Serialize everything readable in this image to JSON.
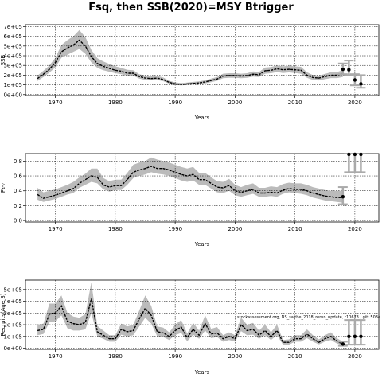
{
  "title": "Fsq, then SSB(2020)=MSY Btrigger",
  "annotation": "stockassessment.org, NS_saithe_2018_rerun_update, r10673 , git: 503e",
  "colors": {
    "band": "#bbbbbb",
    "line": "#000000",
    "proj": "#aaaaaa",
    "grid": "#000000"
  },
  "chart_data": [
    {
      "type": "line",
      "ylabel": "SSB",
      "xlabel": "Years",
      "xlim": [
        1965,
        2024
      ],
      "ylim": [
        -10000,
        720000
      ],
      "xticks": [
        1970,
        1980,
        1990,
        2000,
        2010,
        2020
      ],
      "yticks": [
        0,
        100000,
        200000,
        300000,
        400000,
        500000,
        600000,
        700000
      ],
      "ytick_labels": [
        "0e+00",
        "1e+05",
        "2e+05",
        "3e+05",
        "4e+05",
        "5e+05",
        "6e+05",
        "7e+05"
      ],
      "grid": true,
      "x": [
        1967,
        1968,
        1969,
        1970,
        1971,
        1972,
        1973,
        1974,
        1975,
        1976,
        1977,
        1978,
        1979,
        1980,
        1981,
        1982,
        1983,
        1984,
        1985,
        1986,
        1987,
        1988,
        1989,
        1990,
        1991,
        1992,
        1993,
        1994,
        1995,
        1996,
        1997,
        1998,
        1999,
        2000,
        2001,
        2002,
        2003,
        2004,
        2005,
        2006,
        2007,
        2008,
        2009,
        2010,
        2011,
        2012,
        2013,
        2014,
        2015,
        2016,
        2017,
        2018
      ],
      "values": [
        165000,
        210000,
        260000,
        330000,
        440000,
        480000,
        510000,
        560000,
        500000,
        390000,
        320000,
        290000,
        270000,
        250000,
        240000,
        220000,
        220000,
        185000,
        170000,
        165000,
        170000,
        155000,
        125000,
        110000,
        105000,
        110000,
        115000,
        120000,
        130000,
        145000,
        160000,
        190000,
        195000,
        195000,
        190000,
        195000,
        210000,
        205000,
        245000,
        250000,
        265000,
        255000,
        260000,
        255000,
        250000,
        200000,
        175000,
        170000,
        185000,
        200000,
        200000,
        215000
      ],
      "lower": [
        140000,
        180000,
        225000,
        280000,
        380000,
        410000,
        440000,
        470000,
        420000,
        330000,
        275000,
        250000,
        235000,
        220000,
        210000,
        195000,
        195000,
        165000,
        150000,
        148000,
        150000,
        138000,
        112000,
        98000,
        95000,
        98000,
        103000,
        108000,
        115000,
        128000,
        142000,
        168000,
        172000,
        172000,
        168000,
        172000,
        185000,
        180000,
        215000,
        220000,
        232000,
        222000,
        228000,
        222000,
        215000,
        172000,
        150000,
        145000,
        158000,
        170000,
        170000,
        180000
      ],
      "upper": [
        195000,
        245000,
        300000,
        380000,
        510000,
        560000,
        600000,
        665000,
        590000,
        460000,
        375000,
        340000,
        315000,
        290000,
        275000,
        255000,
        250000,
        210000,
        195000,
        188000,
        192000,
        175000,
        142000,
        125000,
        118000,
        123000,
        130000,
        135000,
        147000,
        165000,
        180000,
        215000,
        220000,
        220000,
        215000,
        220000,
        238000,
        232000,
        278000,
        283000,
        300000,
        290000,
        295000,
        290000,
        285000,
        230000,
        200000,
        195000,
        212000,
        230000,
        232000,
        250000
      ],
      "projection": {
        "x": [
          2018,
          2019,
          2020,
          2021
        ],
        "median": [
          260000,
          255000,
          150000,
          110000
        ],
        "lower": [
          210000,
          200000,
          95000,
          70000
        ],
        "upper": [
          320000,
          350000,
          210000,
          200000
        ]
      }
    },
    {
      "type": "line",
      "ylabel": "F₄‑₇",
      "xlabel": "Years",
      "xlim": [
        1965,
        2024
      ],
      "ylim": [
        -0.02,
        0.9
      ],
      "xticks": [
        1970,
        1980,
        1990,
        2000,
        2010,
        2020
      ],
      "yticks": [
        0.0,
        0.2,
        0.4,
        0.6,
        0.8
      ],
      "ytick_labels": [
        "0.0",
        "0.2",
        "0.4",
        "0.6",
        "0.8"
      ],
      "grid": true,
      "x": [
        1967,
        1968,
        1969,
        1970,
        1971,
        1972,
        1973,
        1974,
        1975,
        1976,
        1977,
        1978,
        1979,
        1980,
        1981,
        1982,
        1983,
        1984,
        1985,
        1986,
        1987,
        1988,
        1989,
        1990,
        1991,
        1992,
        1993,
        1994,
        1995,
        1996,
        1997,
        1998,
        1999,
        2000,
        2001,
        2002,
        2003,
        2004,
        2005,
        2006,
        2007,
        2008,
        2009,
        2010,
        2011,
        2012,
        2013,
        2014,
        2015,
        2016,
        2017,
        2018
      ],
      "values": [
        0.35,
        0.3,
        0.32,
        0.34,
        0.37,
        0.4,
        0.43,
        0.5,
        0.55,
        0.6,
        0.58,
        0.48,
        0.45,
        0.47,
        0.47,
        0.55,
        0.65,
        0.68,
        0.7,
        0.73,
        0.7,
        0.7,
        0.68,
        0.65,
        0.62,
        0.6,
        0.62,
        0.55,
        0.55,
        0.5,
        0.45,
        0.44,
        0.47,
        0.4,
        0.38,
        0.4,
        0.42,
        0.37,
        0.37,
        0.38,
        0.37,
        0.41,
        0.43,
        0.42,
        0.42,
        0.4,
        0.37,
        0.35,
        0.33,
        0.32,
        0.31,
        0.31
      ],
      "lower": [
        0.28,
        0.25,
        0.27,
        0.29,
        0.32,
        0.35,
        0.37,
        0.44,
        0.48,
        0.52,
        0.5,
        0.42,
        0.39,
        0.41,
        0.41,
        0.48,
        0.57,
        0.6,
        0.62,
        0.65,
        0.63,
        0.62,
        0.6,
        0.57,
        0.54,
        0.52,
        0.54,
        0.48,
        0.48,
        0.43,
        0.38,
        0.37,
        0.4,
        0.34,
        0.32,
        0.34,
        0.36,
        0.32,
        0.32,
        0.33,
        0.32,
        0.36,
        0.38,
        0.37,
        0.36,
        0.34,
        0.31,
        0.29,
        0.27,
        0.26,
        0.25,
        0.24
      ],
      "upper": [
        0.44,
        0.38,
        0.4,
        0.42,
        0.45,
        0.48,
        0.52,
        0.58,
        0.63,
        0.7,
        0.7,
        0.57,
        0.53,
        0.55,
        0.55,
        0.64,
        0.75,
        0.78,
        0.8,
        0.85,
        0.82,
        0.8,
        0.78,
        0.75,
        0.72,
        0.7,
        0.72,
        0.64,
        0.64,
        0.58,
        0.53,
        0.52,
        0.56,
        0.48,
        0.45,
        0.48,
        0.5,
        0.44,
        0.44,
        0.46,
        0.45,
        0.49,
        0.51,
        0.5,
        0.5,
        0.48,
        0.45,
        0.43,
        0.41,
        0.4,
        0.4,
        0.4
      ],
      "projection": {
        "x": [
          2018,
          2019,
          2020,
          2021
        ],
        "median": [
          0.32,
          0.89,
          0.89,
          0.89
        ],
        "lower": [
          0.22,
          0.65,
          0.65,
          0.65
        ],
        "upper": [
          0.45,
          0.9,
          0.9,
          0.9
        ]
      }
    },
    {
      "type": "line",
      "ylabel": "Recruits(Age 3)",
      "xlabel": "Years",
      "xlim": [
        1965,
        2024
      ],
      "ylim": [
        -10000,
        580000
      ],
      "xticks": [
        1970,
        1980,
        1990,
        2000,
        2010,
        2020
      ],
      "yticks": [
        0,
        100000,
        200000,
        300000,
        400000,
        500000
      ],
      "ytick_labels": [
        "0e+00",
        "1e+05",
        "2e+05",
        "3e+05",
        "4e+05",
        "5e+05"
      ],
      "grid": true,
      "x": [
        1967,
        1968,
        1969,
        1970,
        1971,
        1972,
        1973,
        1974,
        1975,
        1976,
        1977,
        1978,
        1979,
        1980,
        1981,
        1982,
        1983,
        1984,
        1985,
        1986,
        1987,
        1988,
        1989,
        1990,
        1991,
        1992,
        1993,
        1994,
        1995,
        1996,
        1997,
        1998,
        1999,
        2000,
        2001,
        2002,
        2003,
        2004,
        2005,
        2006,
        2007,
        2008,
        2009,
        2010,
        2011,
        2012,
        2013,
        2014,
        2015,
        2016,
        2017,
        2018
      ],
      "values": [
        150000,
        160000,
        290000,
        300000,
        360000,
        230000,
        210000,
        200000,
        220000,
        420000,
        140000,
        110000,
        80000,
        80000,
        160000,
        140000,
        150000,
        250000,
        340000,
        280000,
        140000,
        130000,
        100000,
        150000,
        180000,
        90000,
        160000,
        110000,
        210000,
        120000,
        130000,
        80000,
        100000,
        80000,
        200000,
        150000,
        160000,
        110000,
        150000,
        100000,
        150000,
        50000,
        50000,
        80000,
        80000,
        120000,
        80000,
        50000,
        80000,
        100000,
        60000,
        35000
      ],
      "lower": [
        110000,
        120000,
        220000,
        230000,
        280000,
        170000,
        150000,
        150000,
        160000,
        300000,
        100000,
        80000,
        55000,
        55000,
        115000,
        100000,
        110000,
        185000,
        260000,
        210000,
        100000,
        95000,
        70000,
        110000,
        130000,
        60000,
        115000,
        80000,
        150000,
        85000,
        95000,
        55000,
        70000,
        55000,
        145000,
        110000,
        115000,
        80000,
        110000,
        70000,
        110000,
        30000,
        30000,
        55000,
        55000,
        85000,
        55000,
        32000,
        55000,
        70000,
        40000,
        20000
      ],
      "upper": [
        200000,
        210000,
        380000,
        380000,
        450000,
        300000,
        270000,
        260000,
        290000,
        560000,
        190000,
        150000,
        110000,
        110000,
        210000,
        185000,
        200000,
        320000,
        450000,
        360000,
        185000,
        175000,
        135000,
        200000,
        240000,
        125000,
        215000,
        150000,
        280000,
        165000,
        180000,
        110000,
        135000,
        110000,
        260000,
        200000,
        215000,
        150000,
        200000,
        135000,
        200000,
        70000,
        75000,
        110000,
        110000,
        160000,
        110000,
        75000,
        110000,
        135000,
        85000,
        55000
      ],
      "projection": {
        "x": [
          2018,
          2019,
          2020,
          2021
        ],
        "median": [
          35000,
          100000,
          100000,
          100000
        ],
        "lower": [
          20000,
          30000,
          30000,
          30000
        ],
        "upper": [
          55000,
          240000,
          240000,
          240000
        ]
      }
    }
  ]
}
